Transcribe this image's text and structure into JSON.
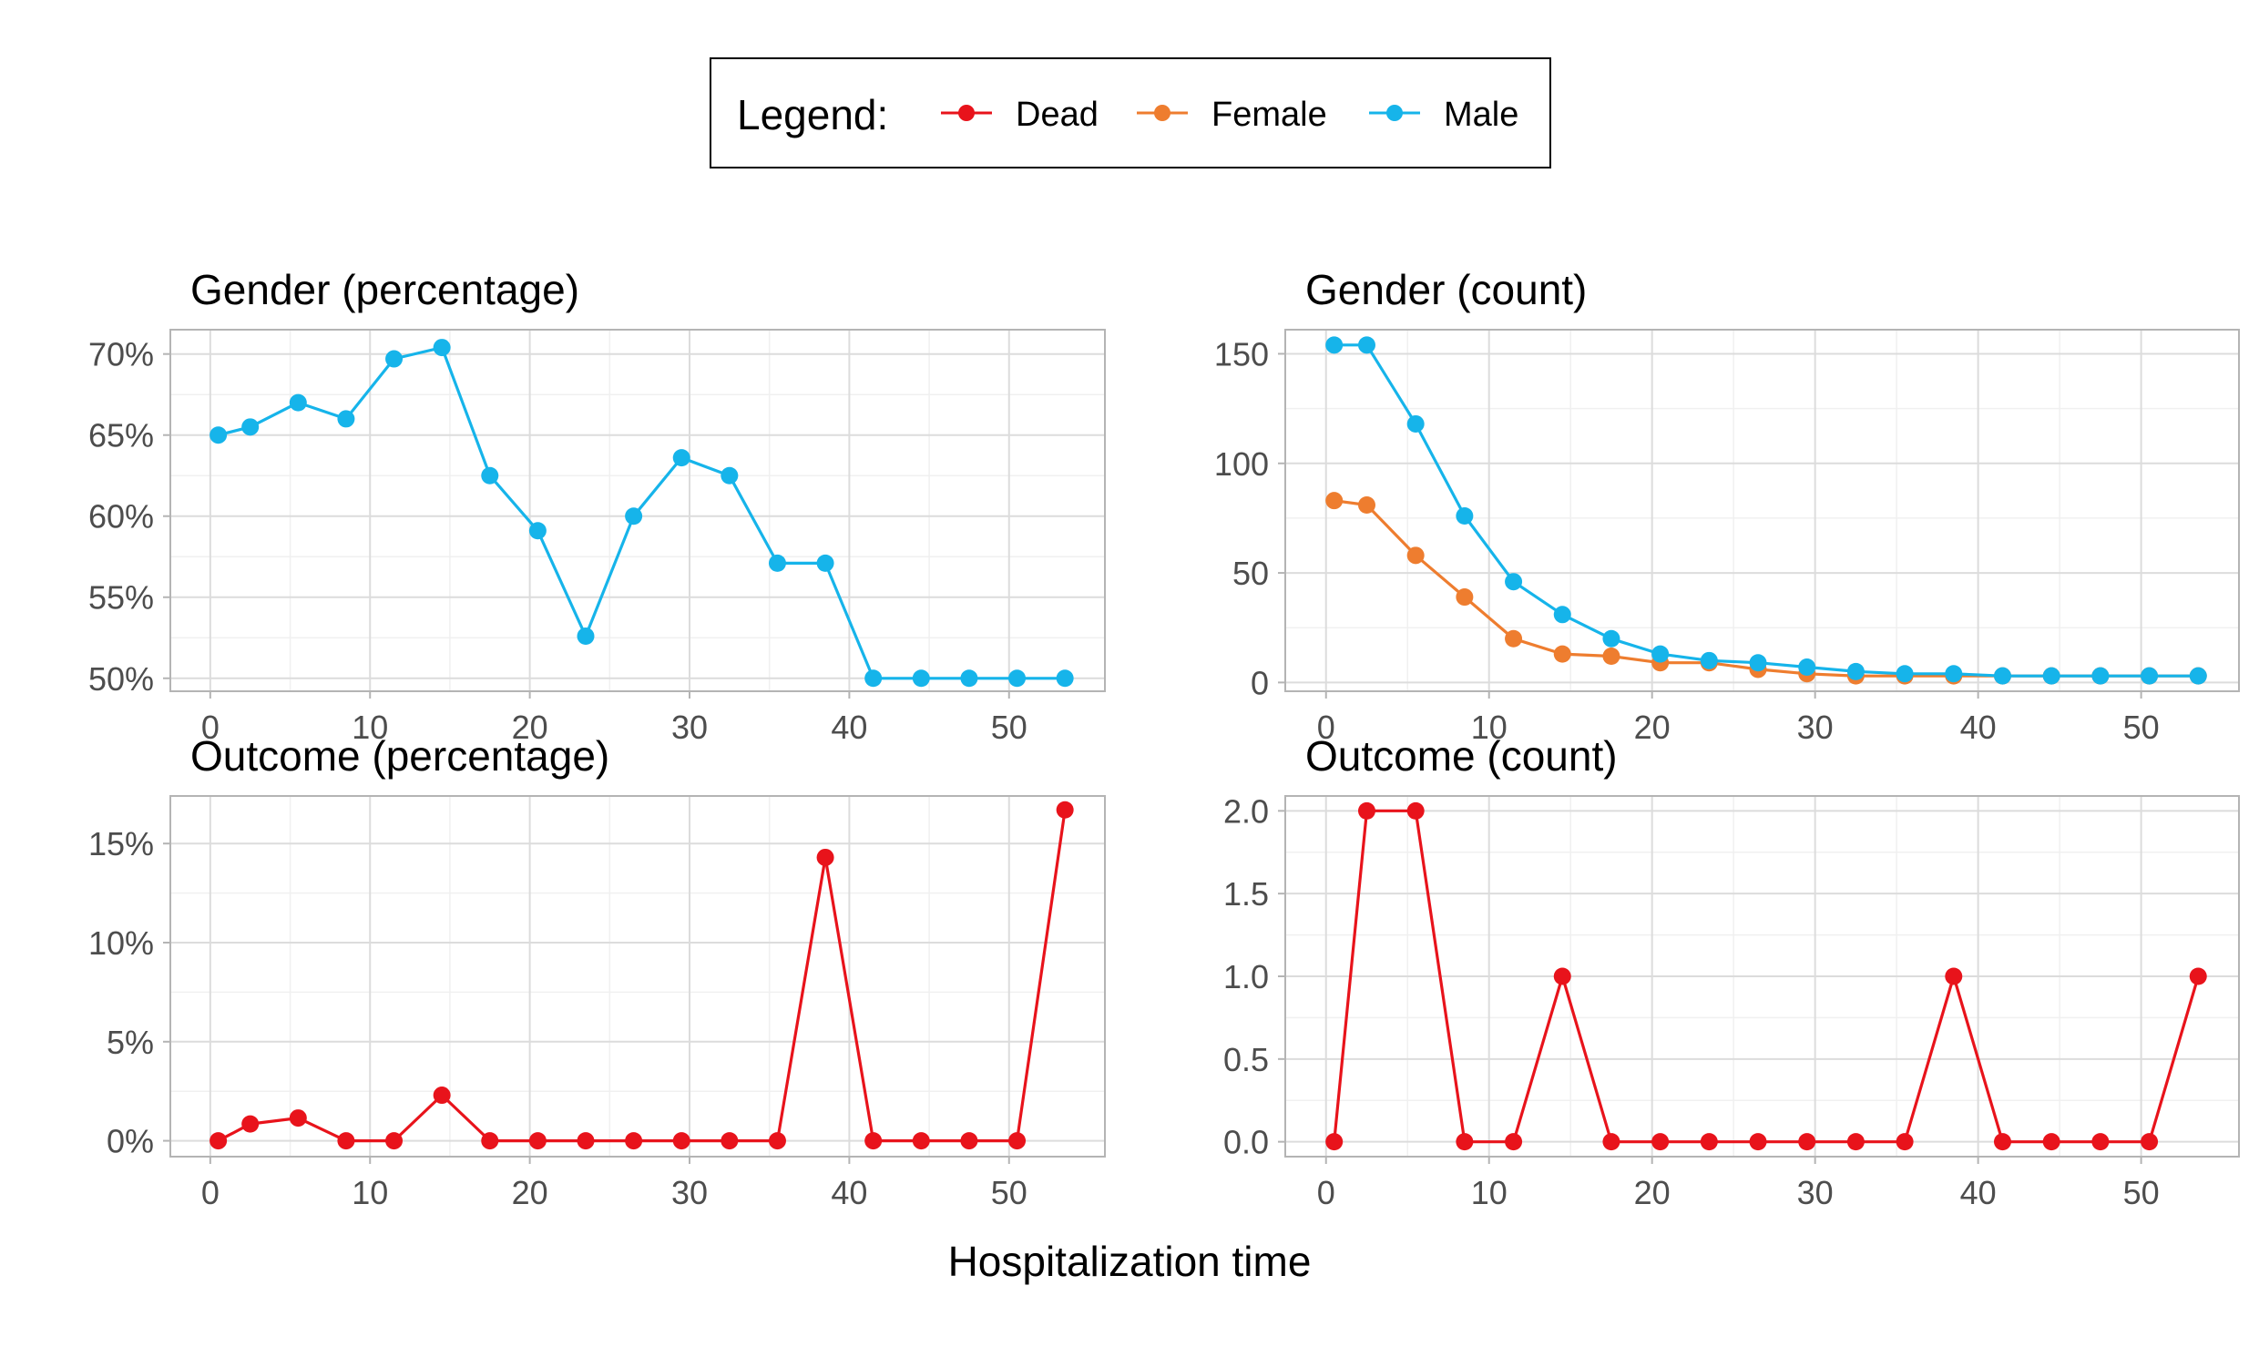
{
  "legend": {
    "title": "Legend:",
    "items": [
      {
        "label": "Dead",
        "color": "#e8131b"
      },
      {
        "label": "Female",
        "color": "#ee7d2f"
      },
      {
        "label": "Male",
        "color": "#16b4ea"
      }
    ]
  },
  "xlabel": "Hospitalization time",
  "chart_data": [
    {
      "type": "line",
      "title": "Gender (percentage)",
      "xticks": [
        0,
        10,
        20,
        30,
        40,
        50
      ],
      "xlim": [
        -2.5,
        56
      ],
      "ylim": [
        49.2,
        71.5
      ],
      "yticks": [
        50,
        55,
        60,
        65,
        70
      ],
      "ytick_labels": [
        "50%",
        "55%",
        "60%",
        "65%",
        "70%"
      ],
      "grid": true,
      "series": [
        {
          "name": "Male",
          "color": "#16b4ea",
          "x": [
            0.5,
            2.5,
            5.5,
            8.5,
            11.5,
            14.5,
            17.5,
            20.5,
            23.5,
            26.5,
            29.5,
            32.5,
            35.5,
            38.5,
            41.5,
            44.5,
            47.5,
            50.5,
            53.5
          ],
          "y": [
            65.0,
            65.5,
            67.0,
            66.0,
            69.7,
            70.4,
            62.5,
            59.1,
            52.6,
            60.0,
            63.6,
            62.5,
            57.1,
            57.1,
            50.0,
            50.0,
            50.0,
            50.0,
            50.0
          ]
        }
      ]
    },
    {
      "type": "line",
      "title": "Gender (count)",
      "xticks": [
        0,
        10,
        20,
        30,
        40,
        50
      ],
      "xlim": [
        -2.5,
        56
      ],
      "ylim": [
        -4,
        161
      ],
      "yticks": [
        0,
        50,
        100,
        150
      ],
      "ytick_labels": [
        "0",
        "50",
        "100",
        "150"
      ],
      "grid": true,
      "series": [
        {
          "name": "Female",
          "color": "#ee7d2f",
          "x": [
            0.5,
            2.5,
            5.5,
            8.5,
            11.5,
            14.5,
            17.5,
            20.5,
            23.5,
            26.5,
            29.5,
            32.5,
            35.5,
            38.5,
            41.5,
            44.5,
            47.5,
            50.5,
            53.5
          ],
          "y": [
            83,
            81,
            58,
            39,
            20,
            13,
            12,
            9,
            9,
            6,
            4,
            3,
            3,
            3,
            3,
            3,
            3,
            3,
            3
          ]
        },
        {
          "name": "Male",
          "color": "#16b4ea",
          "x": [
            0.5,
            2.5,
            5.5,
            8.5,
            11.5,
            14.5,
            17.5,
            20.5,
            23.5,
            26.5,
            29.5,
            32.5,
            35.5,
            38.5,
            41.5,
            44.5,
            47.5,
            50.5,
            53.5
          ],
          "y": [
            154,
            154,
            118,
            76,
            46,
            31,
            20,
            13,
            10,
            9,
            7,
            5,
            4,
            4,
            3,
            3,
            3,
            3,
            3
          ]
        }
      ]
    },
    {
      "type": "line",
      "title": "Outcome (percentage)",
      "xticks": [
        0,
        10,
        20,
        30,
        40,
        50
      ],
      "xlim": [
        -2.5,
        56
      ],
      "ylim": [
        -0.8,
        17.4
      ],
      "yticks": [
        0,
        5,
        10,
        15
      ],
      "ytick_labels": [
        "0%",
        "5%",
        "10%",
        "15%"
      ],
      "grid": true,
      "series": [
        {
          "name": "Dead",
          "color": "#e8131b",
          "x": [
            0.5,
            2.5,
            5.5,
            8.5,
            11.5,
            14.5,
            17.5,
            20.5,
            23.5,
            26.5,
            29.5,
            32.5,
            35.5,
            38.5,
            41.5,
            44.5,
            47.5,
            50.5,
            53.5
          ],
          "y": [
            0,
            0.85,
            1.15,
            0,
            0,
            2.3,
            0,
            0,
            0,
            0,
            0,
            0,
            0,
            14.3,
            0,
            0,
            0,
            0,
            16.7
          ]
        }
      ]
    },
    {
      "type": "line",
      "title": "Outcome (count)",
      "xticks": [
        0,
        10,
        20,
        30,
        40,
        50
      ],
      "xlim": [
        -2.5,
        56
      ],
      "ylim": [
        -0.09,
        2.09
      ],
      "yticks": [
        0.0,
        0.5,
        1.0,
        1.5,
        2.0
      ],
      "ytick_labels": [
        "0.0",
        "0.5",
        "1.0",
        "1.5",
        "2.0"
      ],
      "grid": true,
      "series": [
        {
          "name": "Dead",
          "color": "#e8131b",
          "x": [
            0.5,
            2.5,
            5.5,
            8.5,
            11.5,
            14.5,
            17.5,
            20.5,
            23.5,
            26.5,
            29.5,
            32.5,
            35.5,
            38.5,
            41.5,
            44.5,
            47.5,
            50.5,
            53.5
          ],
          "y": [
            0,
            2,
            2,
            0,
            0,
            1,
            0,
            0,
            0,
            0,
            0,
            0,
            0,
            1,
            0,
            0,
            0,
            0,
            1
          ]
        }
      ]
    }
  ]
}
